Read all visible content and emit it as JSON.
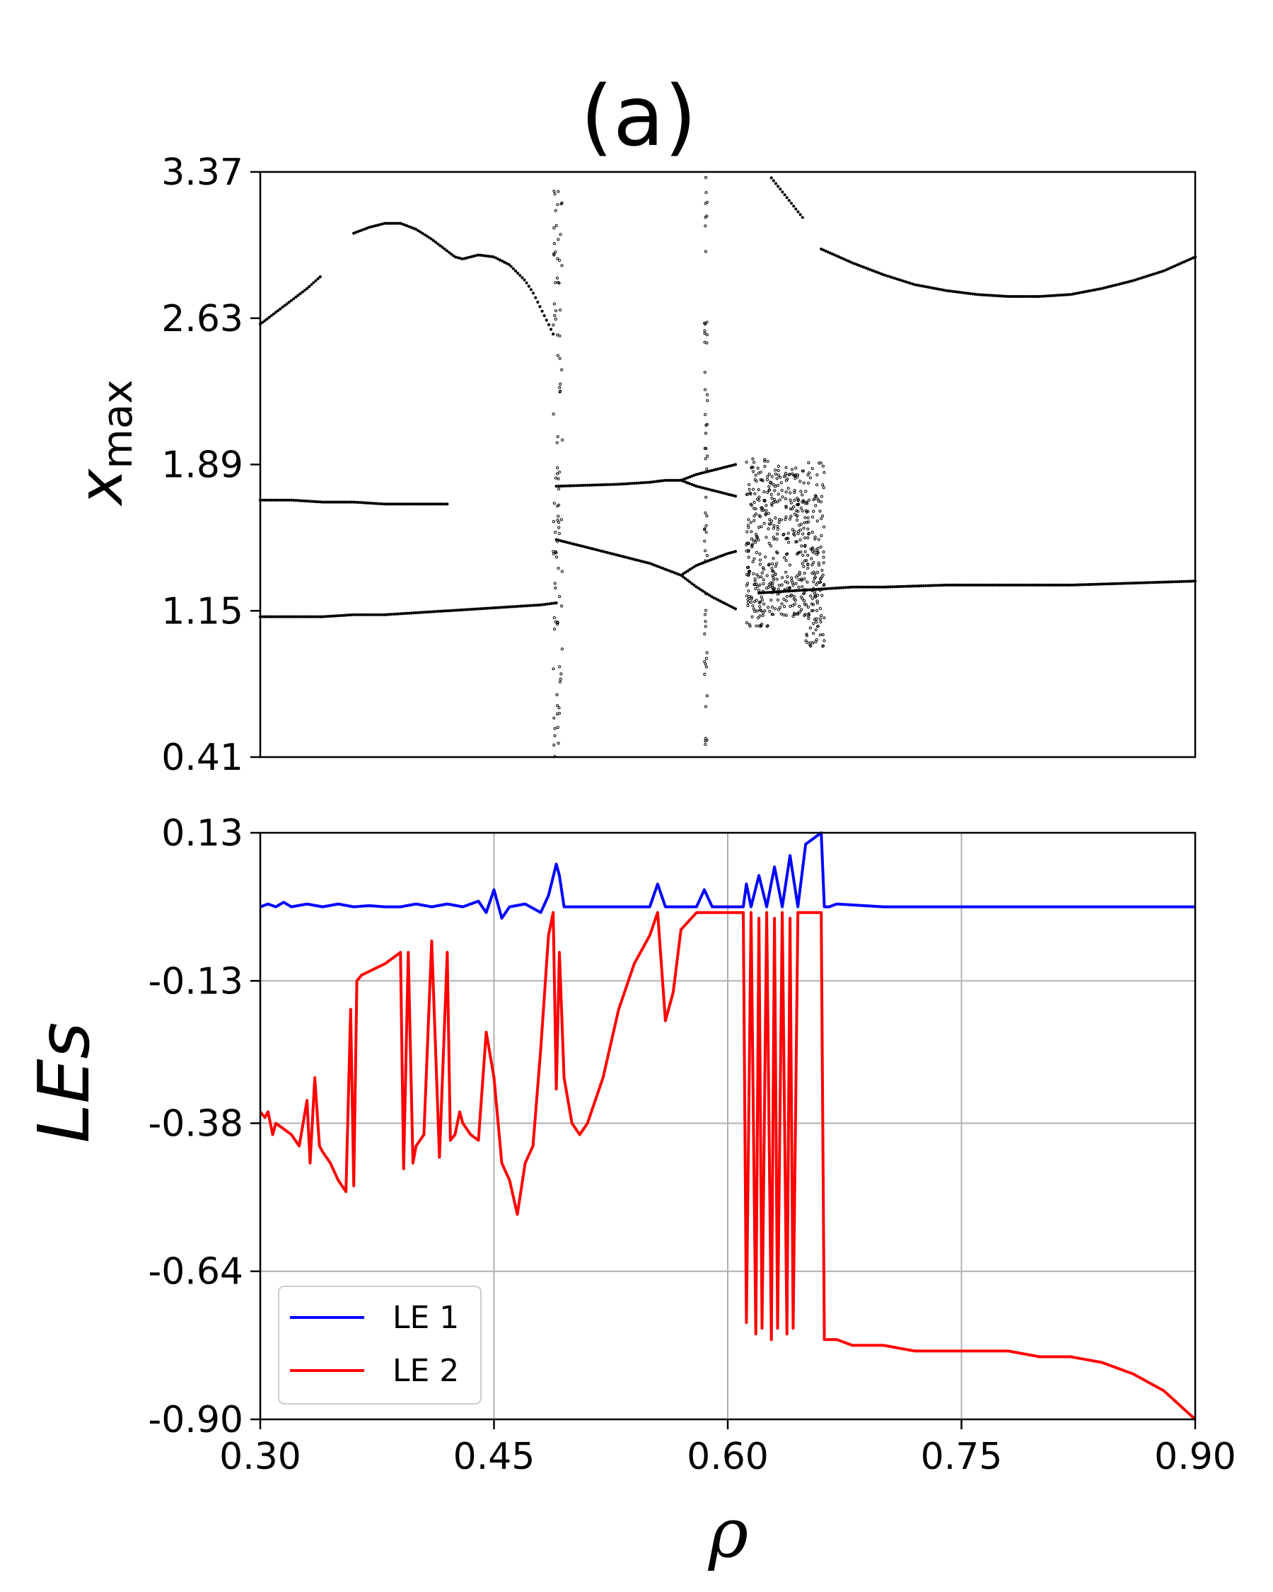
{
  "chart_data": [
    {
      "type": "scatter",
      "panel": "top",
      "title": "(a)",
      "xlabel": "",
      "ylabel": "x",
      "ylabel_sub": "max",
      "xlim": [
        0.3,
        0.9
      ],
      "ylim": [
        0.41,
        3.37
      ],
      "yticks": [
        "0.41",
        "1.15",
        "1.89",
        "2.63",
        "3.37"
      ],
      "grid": false,
      "point_color": "#000000",
      "branches": [
        {
          "name": "upper-1",
          "x": [
            0.3,
            0.31,
            0.32,
            0.33,
            0.3385
          ],
          "y": [
            2.6,
            2.66,
            2.72,
            2.78,
            2.84
          ]
        },
        {
          "name": "upper-2",
          "x": [
            0.36,
            0.37,
            0.38,
            0.39,
            0.4,
            0.41,
            0.42,
            0.425,
            0.43,
            0.435,
            0.44,
            0.45,
            0.46,
            0.47,
            0.475,
            0.48,
            0.485,
            0.488
          ],
          "y": [
            3.06,
            3.09,
            3.11,
            3.11,
            3.08,
            3.03,
            2.97,
            2.94,
            2.93,
            2.94,
            2.95,
            2.94,
            2.9,
            2.82,
            2.76,
            2.68,
            2.6,
            2.55
          ]
        },
        {
          "name": "upper-3",
          "x": [
            0.628,
            0.633,
            0.638,
            0.643,
            0.648
          ],
          "y": [
            3.34,
            3.29,
            3.24,
            3.19,
            3.14
          ]
        },
        {
          "name": "upper-4",
          "x": [
            0.66,
            0.68,
            0.7,
            0.72,
            0.74,
            0.76,
            0.78,
            0.8,
            0.82,
            0.84,
            0.86,
            0.88,
            0.9
          ],
          "y": [
            2.98,
            2.91,
            2.85,
            2.8,
            2.77,
            2.75,
            2.74,
            2.74,
            2.75,
            2.78,
            2.82,
            2.87,
            2.94
          ]
        },
        {
          "name": "mid-left",
          "x": [
            0.3,
            0.32,
            0.34,
            0.36,
            0.38,
            0.4,
            0.42
          ],
          "y": [
            1.71,
            1.71,
            1.7,
            1.7,
            1.69,
            1.69,
            1.69
          ]
        },
        {
          "name": "mid-right",
          "x": [
            0.49,
            0.51,
            0.53,
            0.55,
            0.56,
            0.57
          ],
          "y": [
            1.78,
            1.785,
            1.79,
            1.8,
            1.81,
            1.81
          ]
        },
        {
          "name": "lower-left",
          "x": [
            0.3,
            0.32,
            0.34,
            0.36,
            0.38,
            0.4,
            0.42,
            0.44,
            0.46,
            0.48,
            0.49
          ],
          "y": [
            1.12,
            1.12,
            1.12,
            1.13,
            1.13,
            1.14,
            1.15,
            1.16,
            1.17,
            1.18,
            1.19
          ]
        },
        {
          "name": "lower-mid",
          "x": [
            0.49,
            0.51,
            0.53,
            0.55,
            0.57
          ],
          "y": [
            1.51,
            1.47,
            1.43,
            1.39,
            1.33
          ]
        },
        {
          "name": "lower-right",
          "x": [
            0.62,
            0.64,
            0.66,
            0.68,
            0.7,
            0.72,
            0.74,
            0.76,
            0.78,
            0.8,
            0.82,
            0.84,
            0.86,
            0.88,
            0.9
          ],
          "y": [
            1.24,
            1.25,
            1.26,
            1.27,
            1.27,
            1.275,
            1.28,
            1.28,
            1.28,
            1.28,
            1.28,
            1.285,
            1.29,
            1.295,
            1.3
          ]
        },
        {
          "name": "bif-up",
          "x": [
            0.57,
            0.58,
            0.59,
            0.6,
            0.605
          ],
          "y": [
            1.81,
            1.84,
            1.86,
            1.88,
            1.89
          ]
        },
        {
          "name": "bif-down",
          "x": [
            0.57,
            0.58,
            0.59,
            0.6,
            0.605
          ],
          "y": [
            1.81,
            1.78,
            1.76,
            1.74,
            1.73
          ]
        },
        {
          "name": "bif-up2",
          "x": [
            0.57,
            0.58,
            0.59,
            0.6,
            0.605
          ],
          "y": [
            1.33,
            1.38,
            1.41,
            1.44,
            1.45
          ]
        },
        {
          "name": "bif-down2",
          "x": [
            0.57,
            0.58,
            0.59,
            0.6,
            0.605
          ],
          "y": [
            1.33,
            1.27,
            1.22,
            1.18,
            1.16
          ]
        }
      ],
      "chaotic_bands": [
        {
          "x": [
            0.488,
            0.494
          ],
          "y": [
            0.41,
            3.3
          ]
        },
        {
          "x": [
            0.585,
            0.587
          ],
          "y": [
            0.41,
            3.37
          ]
        },
        {
          "x": [
            0.612,
            0.626
          ],
          "y": [
            1.07,
            1.92
          ]
        },
        {
          "x": [
            0.626,
            0.65
          ],
          "y": [
            1.12,
            1.89
          ]
        },
        {
          "x": [
            0.65,
            0.662
          ],
          "y": [
            0.97,
            1.91
          ]
        }
      ]
    },
    {
      "type": "line",
      "panel": "bottom",
      "title": "",
      "xlabel": "ρ",
      "ylabel": "LEs",
      "xlim": [
        0.3,
        0.9
      ],
      "ylim": [
        -0.9,
        0.13
      ],
      "xticks": [
        "0.30",
        "0.45",
        "0.60",
        "0.75",
        "0.90"
      ],
      "yticks": [
        "-0.90",
        "-0.64",
        "-0.38",
        "-0.13",
        "0.13"
      ],
      "grid": true,
      "legend_position": "lower-left",
      "series": [
        {
          "name": "LE 1",
          "color": "#0000ff",
          "x": [
            0.3,
            0.305,
            0.31,
            0.315,
            0.32,
            0.33,
            0.34,
            0.35,
            0.36,
            0.37,
            0.38,
            0.39,
            0.4,
            0.41,
            0.42,
            0.43,
            0.44,
            0.445,
            0.45,
            0.455,
            0.46,
            0.47,
            0.48,
            0.485,
            0.49,
            0.492,
            0.495,
            0.5,
            0.52,
            0.54,
            0.55,
            0.555,
            0.56,
            0.58,
            0.585,
            0.59,
            0.6,
            0.61,
            0.612,
            0.615,
            0.62,
            0.625,
            0.63,
            0.635,
            0.64,
            0.645,
            0.65,
            0.655,
            0.66,
            0.662,
            0.665,
            0.67,
            0.7,
            0.75,
            0.8,
            0.85,
            0.9
          ],
          "y": [
            0.0,
            0.005,
            0.0,
            0.008,
            0.0,
            0.005,
            0.0,
            0.005,
            0.0,
            0.002,
            0.0,
            0.0,
            0.005,
            0.0,
            0.005,
            0.0,
            0.01,
            -0.01,
            0.03,
            -0.02,
            0.0,
            0.005,
            -0.01,
            0.02,
            0.075,
            0.055,
            0.0,
            0.0,
            0.0,
            0.0,
            0.0,
            0.04,
            0.0,
            0.0,
            0.03,
            0.0,
            0.0,
            0.0,
            0.04,
            0.0,
            0.055,
            0.0,
            0.07,
            0.0,
            0.09,
            0.0,
            0.11,
            0.12,
            0.13,
            0.0,
            0.0,
            0.005,
            0.0,
            0.0,
            0.0,
            0.0,
            0.0
          ]
        },
        {
          "name": "LE 2",
          "color": "#ff0000",
          "x": [
            0.3,
            0.303,
            0.305,
            0.308,
            0.31,
            0.315,
            0.32,
            0.325,
            0.33,
            0.332,
            0.335,
            0.338,
            0.34,
            0.345,
            0.35,
            0.355,
            0.358,
            0.36,
            0.362,
            0.365,
            0.38,
            0.39,
            0.392,
            0.395,
            0.398,
            0.4,
            0.405,
            0.41,
            0.415,
            0.42,
            0.422,
            0.425,
            0.428,
            0.43,
            0.435,
            0.44,
            0.445,
            0.45,
            0.455,
            0.46,
            0.465,
            0.47,
            0.475,
            0.48,
            0.485,
            0.488,
            0.49,
            0.492,
            0.495,
            0.5,
            0.505,
            0.51,
            0.52,
            0.53,
            0.54,
            0.55,
            0.555,
            0.56,
            0.565,
            0.57,
            0.58,
            0.59,
            0.6,
            0.61,
            0.612,
            0.615,
            0.618,
            0.62,
            0.622,
            0.625,
            0.628,
            0.63,
            0.632,
            0.635,
            0.638,
            0.64,
            0.642,
            0.645,
            0.648,
            0.65,
            0.652,
            0.655,
            0.658,
            0.66,
            0.662,
            0.665,
            0.67,
            0.68,
            0.7,
            0.72,
            0.75,
            0.78,
            0.8,
            0.82,
            0.84,
            0.86,
            0.88,
            0.9
          ],
          "y": [
            -0.36,
            -0.37,
            -0.36,
            -0.4,
            -0.38,
            -0.39,
            -0.4,
            -0.42,
            -0.34,
            -0.45,
            -0.3,
            -0.42,
            -0.43,
            -0.45,
            -0.48,
            -0.5,
            -0.18,
            -0.49,
            -0.13,
            -0.12,
            -0.1,
            -0.08,
            -0.46,
            -0.08,
            -0.45,
            -0.42,
            -0.4,
            -0.06,
            -0.44,
            -0.08,
            -0.41,
            -0.4,
            -0.36,
            -0.38,
            -0.4,
            -0.41,
            -0.22,
            -0.3,
            -0.45,
            -0.48,
            -0.54,
            -0.45,
            -0.42,
            -0.25,
            -0.05,
            -0.01,
            -0.32,
            -0.08,
            -0.3,
            -0.38,
            -0.4,
            -0.38,
            -0.3,
            -0.18,
            -0.1,
            -0.05,
            -0.01,
            -0.2,
            -0.15,
            -0.04,
            -0.01,
            -0.01,
            -0.01,
            -0.01,
            -0.73,
            -0.01,
            -0.75,
            -0.02,
            -0.74,
            -0.01,
            -0.76,
            -0.02,
            -0.74,
            -0.01,
            -0.75,
            -0.02,
            -0.74,
            -0.01,
            -0.01,
            -0.01,
            -0.01,
            -0.01,
            -0.01,
            -0.01,
            -0.76,
            -0.76,
            -0.76,
            -0.77,
            -0.77,
            -0.78,
            -0.78,
            -0.78,
            -0.79,
            -0.79,
            -0.8,
            -0.82,
            -0.85,
            -0.9
          ]
        }
      ]
    }
  ]
}
